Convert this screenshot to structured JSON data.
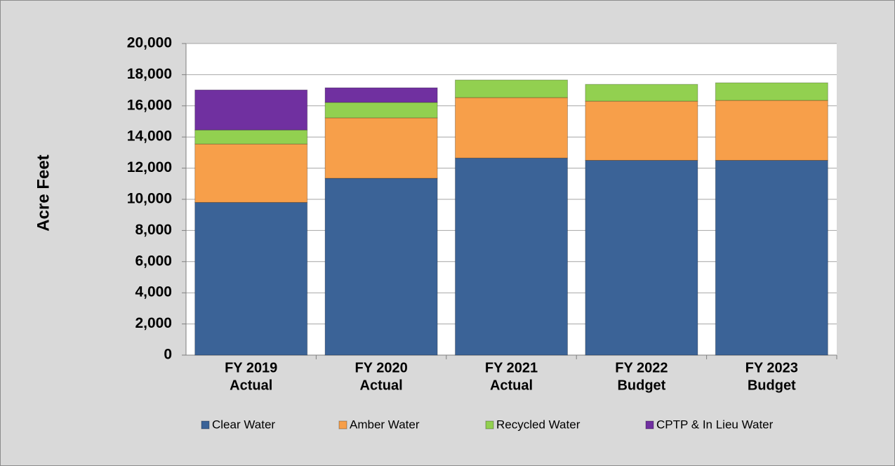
{
  "chart_data": {
    "type": "stacked-bar",
    "y_label": "Acre Feet",
    "categories": [
      [
        "FY 2019",
        "Actual"
      ],
      [
        "FY 2020",
        "Actual"
      ],
      [
        "FY 2021",
        "Actual"
      ],
      [
        "FY 2022",
        "Budget"
      ],
      [
        "FY 2023",
        "Budget"
      ]
    ],
    "series": [
      {
        "name": "Clear Water",
        "color": "#3b6397",
        "values": [
          9800,
          11350,
          12650,
          12500,
          12500
        ]
      },
      {
        "name": "Amber Water",
        "color": "#f79f4a",
        "values": [
          3750,
          3880,
          3880,
          3800,
          3850
        ]
      },
      {
        "name": "Recycled Water",
        "color": "#92d050",
        "values": [
          900,
          990,
          1130,
          1080,
          1130
        ]
      },
      {
        "name": "CPTP & In Lieu Water",
        "color": "#7030a0",
        "values": [
          2570,
          940,
          0,
          0,
          0
        ]
      }
    ],
    "ylim": [
      0,
      20000
    ],
    "yticks": [
      0,
      {
        "value": 2000,
        "label": "2,000"
      },
      {
        "value": 4000,
        "label": "4,000"
      },
      {
        "value": 6000,
        "label": "6,000"
      },
      {
        "value": 8000,
        "label": "8,000"
      },
      {
        "value": 10000,
        "label": "10,000"
      },
      {
        "value": 12000,
        "label": "12,000"
      },
      {
        "value": 14000,
        "label": "14,000"
      },
      {
        "value": 16000,
        "label": "16,000"
      },
      {
        "value": 18000,
        "label": "18,000"
      },
      {
        "value": 20000,
        "label": "20,000"
      }
    ],
    "grid": true,
    "legend": "bottom"
  }
}
